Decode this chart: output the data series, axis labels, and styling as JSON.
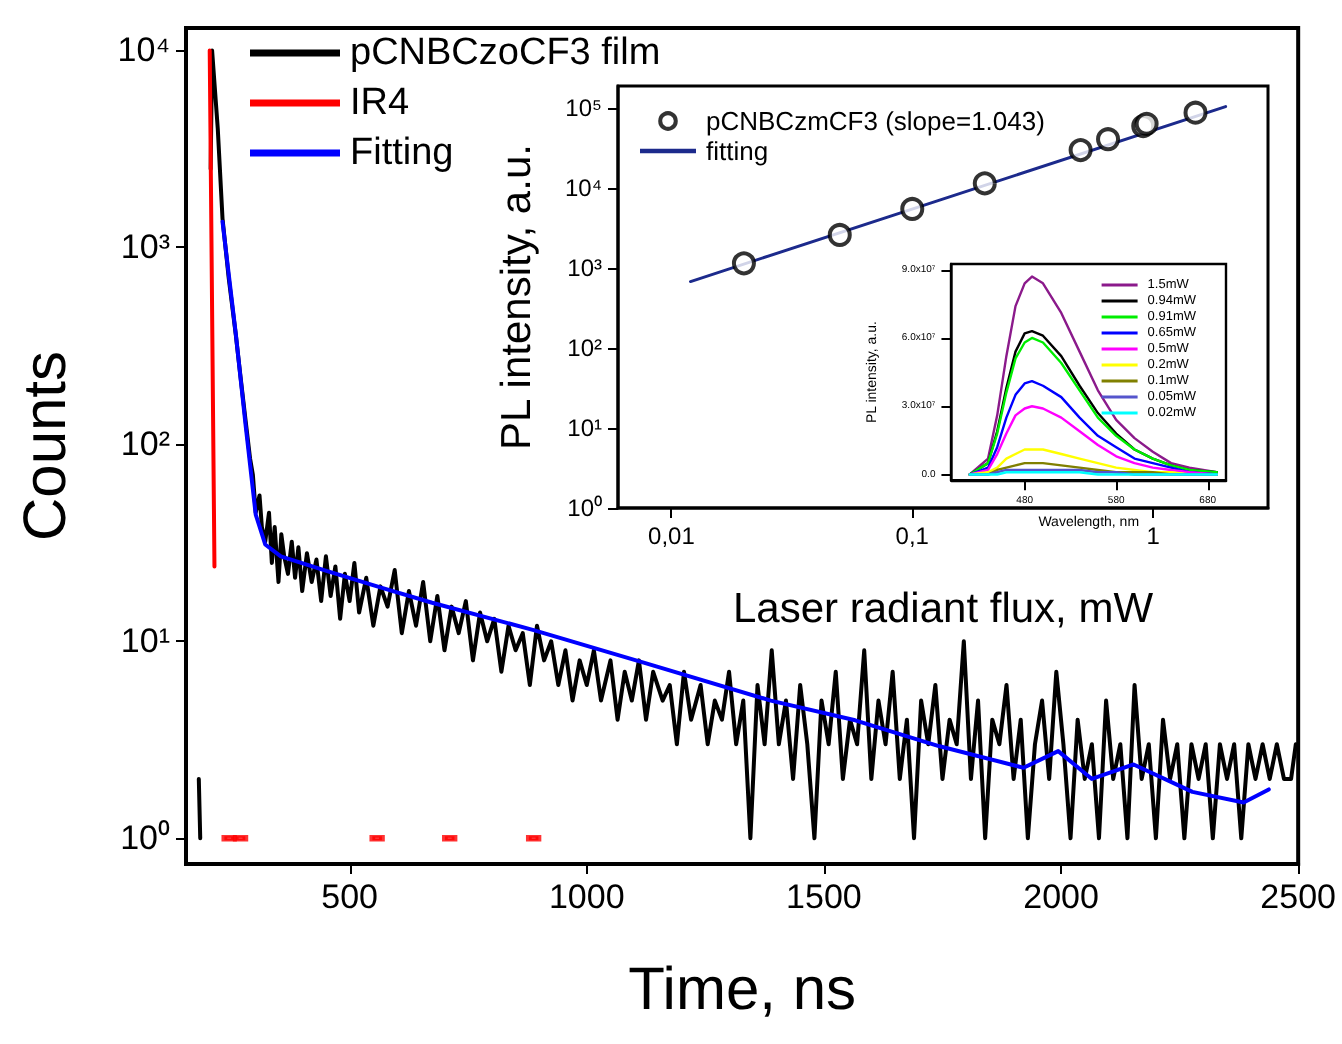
{
  "chart_data": [
    {
      "type": "line",
      "xlabel": "Time, ns",
      "ylabel": "Counts",
      "log": "y",
      "legend": "top left",
      "grid": false,
      "xlim": [
        155,
        2500
      ],
      "xticks": [
        500,
        1000,
        1500,
        2000,
        2500
      ],
      "ylim": [
        0.74,
        13000
      ],
      "yticks": [
        {
          "value": 1,
          "label": "10⁰"
        },
        {
          "value": 10,
          "label": "10¹"
        },
        {
          "value": 100,
          "label": "10²"
        },
        {
          "value": 1000,
          "label": "10³"
        },
        {
          "value": 10000,
          "label": "10⁴"
        }
      ],
      "series": [
        {
          "name": "pCNBCzoCF3 film",
          "color": "#000000",
          "x": [
            182,
            185,
            195,
            207,
            210,
            222,
            232,
            245,
            260,
            270,
            281,
            290,
            296,
            302,
            310,
            315,
            322,
            330,
            336,
            342,
            350,
            356,
            362,
            370,
            378,
            385,
            392,
            400,
            410,
            420,
            430,
            440,
            450,
            460,
            470,
            480,
            490,
            500,
            510,
            520,
            535,
            550,
            565,
            580,
            595,
            610,
            625,
            640,
            655,
            670,
            685,
            700,
            715,
            730,
            745,
            760,
            775,
            790,
            805,
            820,
            835,
            850,
            865,
            880,
            895,
            910,
            925,
            940,
            955,
            970,
            985,
            1000,
            1015,
            1030,
            1050,
            1065,
            1080,
            1095,
            1110,
            1125,
            1140,
            1160,
            1175,
            1190,
            1205,
            1220,
            1240,
            1255,
            1270,
            1285,
            1300,
            1315,
            1330,
            1345,
            1360,
            1375,
            1390,
            1405,
            1420,
            1435,
            1450,
            1465,
            1480,
            1495,
            1510,
            1525,
            1540,
            1555,
            1570,
            1585,
            1600,
            1615,
            1630,
            1645,
            1660,
            1675,
            1690,
            1705,
            1720,
            1735,
            1750,
            1765,
            1780,
            1795,
            1810,
            1825,
            1840,
            1855,
            1870,
            1885,
            1900,
            1915,
            1930,
            1945,
            1960,
            1975,
            1990,
            2005,
            2020,
            2035,
            2050,
            2065,
            2080,
            2095,
            2110,
            2125,
            2140,
            2155,
            2170,
            2185,
            2200,
            2215,
            2230,
            2245,
            2260,
            2275,
            2290,
            2305,
            2320,
            2335,
            2350,
            2365,
            2380,
            2395,
            2410,
            2425,
            2440,
            2455,
            2470,
            2485,
            2495
          ],
          "values": [
            2,
            1,
            null,
            2500,
            10000,
            4000,
            1400,
            700,
            360,
            220,
            130,
            85,
            70,
            45,
            55,
            38,
            32,
            45,
            25,
            38,
            20,
            35,
            27,
            22,
            32,
            21,
            30,
            18,
            28,
            20,
            26,
            16,
            27,
            17,
            24,
            13,
            22,
            16,
            25,
            14,
            21,
            12,
            19,
            15,
            23,
            11,
            18,
            12,
            20,
            10,
            17,
            9,
            15,
            11,
            16,
            8,
            14,
            10,
            13,
            7,
            12,
            9,
            11,
            6,
            12,
            8,
            10,
            6,
            9,
            5,
            8,
            6,
            9,
            5,
            8,
            4,
            7,
            5,
            8,
            4,
            7,
            5,
            6,
            3,
            7,
            4,
            6,
            3,
            5,
            4,
            7,
            3,
            5,
            1,
            6,
            3,
            9,
            3,
            5,
            2,
            6,
            3,
            1,
            5,
            3,
            7,
            2,
            4,
            3,
            9,
            2,
            5,
            3,
            7,
            2,
            4,
            1,
            5,
            3,
            6,
            2,
            4,
            3,
            10,
            2,
            5,
            1,
            4,
            3,
            6,
            2,
            4,
            1,
            3,
            5,
            2,
            7,
            3,
            1,
            4,
            2,
            3,
            1,
            5,
            2,
            3,
            1,
            6,
            2,
            3,
            1,
            4,
            2,
            3,
            1,
            3,
            2,
            3,
            1,
            3,
            2,
            3,
            1,
            3,
            2,
            3,
            2,
            3,
            2,
            2,
            3
          ]
        },
        {
          "name": "IR4",
          "color": "#ff0000",
          "x": [
            205,
            215
          ],
          "values": [
            10000,
            24
          ]
        },
        {
          "type": "scatter",
          "marker": "square",
          "color": "#ff0000",
          "x": [
            246,
            270,
            558,
            711,
            888
          ],
          "values": [
            1,
            1,
            1,
            1,
            1
          ]
        },
        {
          "name": "Fitting",
          "color": "#0000ff",
          "x": [
            232,
            260,
            281,
            302,
            322,
            355,
            446,
            570,
            674,
            888,
            1120,
            1388,
            1566,
            1744,
            1921,
            1994,
            2065,
            2153,
            2277,
            2385,
            2438
          ],
          "values": [
            1350,
            363,
            123,
            44,
            31,
            27,
            23,
            18.6,
            15.7,
            11.4,
            7.8,
            5.0,
            3.97,
            2.93,
            2.28,
            2.77,
            2.0,
            2.37,
            1.72,
            1.52,
            1.77
          ]
        }
      ]
    },
    {
      "type": "scatter",
      "xlabel": "Laser radiant flux, mW",
      "ylabel": "PL intensity, a.u.",
      "log": "xy",
      "legend": "top left",
      "marker": "circle",
      "grid": false,
      "xlim": [
        0.006,
        3
      ],
      "xticks": [
        {
          "value": 0.01,
          "label": "0,01"
        },
        {
          "value": 0.1,
          "label": "0,1"
        },
        1
      ],
      "ylim": [
        1,
        190000
      ],
      "yticks": [
        {
          "value": 1,
          "label": "10⁰"
        },
        {
          "value": 10,
          "label": "10¹"
        },
        {
          "value": 100,
          "label": "10²"
        },
        {
          "value": 1000,
          "label": "10³"
        },
        {
          "value": 10000,
          "label": "10⁴"
        },
        {
          "value": 100000,
          "label": "10⁵"
        }
      ],
      "series": [
        {
          "name": "pCNBCzmCF3 (slope=1.043)",
          "color": "#000000",
          "x": [
            0.02,
            0.05,
            0.1,
            0.2,
            0.5,
            0.65,
            0.91,
            0.94,
            1.5
          ],
          "values": [
            1150,
            2600,
            5500,
            11500,
            30000,
            41000,
            60000,
            64000,
            88000
          ]
        },
        {
          "name": "fitting",
          "type": "line",
          "marker": "none",
          "color": "#1c2a8c",
          "x": [
            0.012,
            2.0
          ],
          "values": [
            680,
            105000
          ]
        }
      ]
    },
    {
      "type": "line",
      "xlabel": "Wavelength, nm",
      "ylabel": "PL intensity, a.u.",
      "legend": "top right",
      "grid": false,
      "xlim": [
        400,
        700
      ],
      "xticks": [
        480,
        580,
        680
      ],
      "ylim": [
        -2500000,
        92500000
      ],
      "yticks": [
        {
          "value": 0,
          "label": "0.0"
        },
        {
          "value": 30000000,
          "label": "3.0x10⁷"
        },
        {
          "value": 60000000,
          "label": "6.0x10⁷"
        },
        {
          "value": 90000000,
          "label": "9.0x10⁷"
        }
      ],
      "x": [
        420,
        440,
        450,
        460,
        470,
        480,
        488,
        500,
        520,
        540,
        560,
        580,
        600,
        620,
        640,
        660,
        690
      ],
      "series": [
        {
          "name": "1.5mW",
          "color": "#8b1a8b",
          "values": [
            0,
            7000000.0,
            26000000.0,
            52000000.0,
            74000000.0,
            84000000.0,
            87000000.0,
            84000000.0,
            71000000.0,
            54000000.0,
            37000000.0,
            24000000.0,
            16000000.0,
            10000000.0,
            5000000.0,
            3000000.0,
            1000000.0
          ]
        },
        {
          "name": "0.94mW",
          "color": "#000000",
          "values": [
            0,
            5000000.0,
            19000000.0,
            38000000.0,
            54000000.0,
            62000000.0,
            63000000.0,
            61000000.0,
            52000000.0,
            39000000.0,
            27000000.0,
            18000000.0,
            11000000.0,
            7000000.0,
            4000000.0,
            2000000.0,
            1000000.0
          ]
        },
        {
          "name": "0.91mW",
          "color": "#00ee00",
          "values": [
            0,
            5000000.0,
            18000000.0,
            36000000.0,
            51000000.0,
            58000000.0,
            60000000.0,
            58000000.0,
            49000000.0,
            37000000.0,
            25000000.0,
            17000000.0,
            11000000.0,
            7000000.0,
            4000000.0,
            2000000.0,
            1000000.0
          ]
        },
        {
          "name": "0.65mW",
          "color": "#0000ff",
          "values": [
            0,
            3000000.0,
            12000000.0,
            25000000.0,
            35000000.0,
            40000000.0,
            41000000.0,
            39000000.0,
            34000000.0,
            25000000.0,
            17000000.0,
            12000000.0,
            7000000.0,
            5000000.0,
            3000000.0,
            1000000.0,
            0
          ]
        },
        {
          "name": "0.5mW",
          "color": "#ff00ff",
          "values": [
            0,
            2000000.0,
            9000000.0,
            18000000.0,
            26000000.0,
            29000000.0,
            30000000.0,
            29000000.0,
            25000000.0,
            19000000.0,
            13000000.0,
            8000000.0,
            5000000.0,
            3000000.0,
            2000000.0,
            1000000.0,
            0
          ]
        },
        {
          "name": "0.2mW",
          "color": "#ffff00",
          "values": [
            0,
            1000000.0,
            3000000.0,
            7000000.0,
            9000000.0,
            11000000.0,
            11000000.0,
            11000000.0,
            9000000.0,
            7000000.0,
            5000000.0,
            3000000.0,
            2000000.0,
            1000000.0,
            1000000.0,
            0,
            0
          ]
        },
        {
          "name": "0.1mW",
          "color": "#808000",
          "values": [
            0,
            0,
            2000000.0,
            3000000.0,
            4000000.0,
            5000000.0,
            5000000.0,
            5000000.0,
            4000000.0,
            3000000.0,
            2000000.0,
            1000000.0,
            1000000.0,
            1000000.0,
            0,
            0,
            0
          ]
        },
        {
          "name": "0.05mW",
          "color": "#5555cc",
          "values": [
            0,
            0,
            1000000.0,
            2000000.0,
            2000000.0,
            2000000.0,
            2000000.0,
            2000000.0,
            2000000.0,
            2000000.0,
            1000000.0,
            1000000.0,
            0,
            0,
            0,
            0,
            0
          ]
        },
        {
          "name": "0.02mW",
          "color": "#00ffff",
          "values": [
            0,
            0,
            0,
            1000000.0,
            1000000.0,
            1000000.0,
            1000000.0,
            1000000.0,
            1000000.0,
            1000000.0,
            0,
            0,
            0,
            0,
            0,
            0,
            0
          ]
        }
      ]
    }
  ]
}
